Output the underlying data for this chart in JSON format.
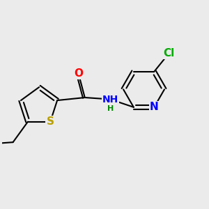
{
  "background_color": "#ebebeb",
  "bond_color": "#000000",
  "bond_width": 1.5,
  "atoms": {
    "S": {
      "color": "#b8a000",
      "fontsize": 11
    },
    "O": {
      "color": "#ff0000",
      "fontsize": 11
    },
    "N": {
      "color": "#0000ff",
      "fontsize": 11
    },
    "Cl": {
      "color": "#00aa00",
      "fontsize": 11
    }
  },
  "figsize": [
    3.0,
    3.0
  ],
  "dpi": 100
}
